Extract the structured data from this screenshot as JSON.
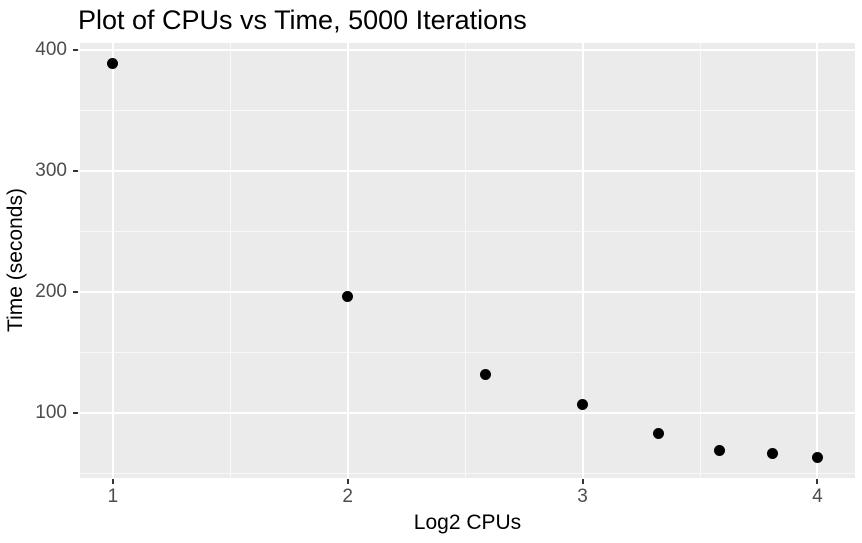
{
  "chart_data": {
    "type": "scatter",
    "title": "Plot of CPUs vs Time, 5000 Iterations",
    "xlabel": "Log2 CPUs",
    "ylabel": "Time (seconds)",
    "x": [
      1,
      2,
      2.585,
      3,
      3.322,
      3.585,
      3.807,
      4
    ],
    "y": [
      389,
      196,
      132,
      107,
      83,
      69,
      66,
      63
    ],
    "xlim": [
      0.86,
      4.16
    ],
    "ylim": [
      46,
      406
    ],
    "x_ticks": [
      1,
      2,
      3,
      4
    ],
    "y_ticks": [
      100,
      200,
      300,
      400
    ],
    "x_minor_ticks": [
      1.5,
      2.5,
      3.5
    ],
    "y_minor_ticks": [
      50,
      150,
      250,
      350
    ],
    "grid": true,
    "legend": "none",
    "point_shape": "filled-circle",
    "colors": {
      "background": "#FFFFFF",
      "panel_bg": "#EBEBEB",
      "grid_major": "#FFFFFF",
      "grid_minor": "#FFFFFF",
      "points": "#000000",
      "tick_marks": "#333333",
      "tick_labels": "#4D4D4D",
      "axis_titles": "#000000",
      "title": "#000000"
    }
  }
}
